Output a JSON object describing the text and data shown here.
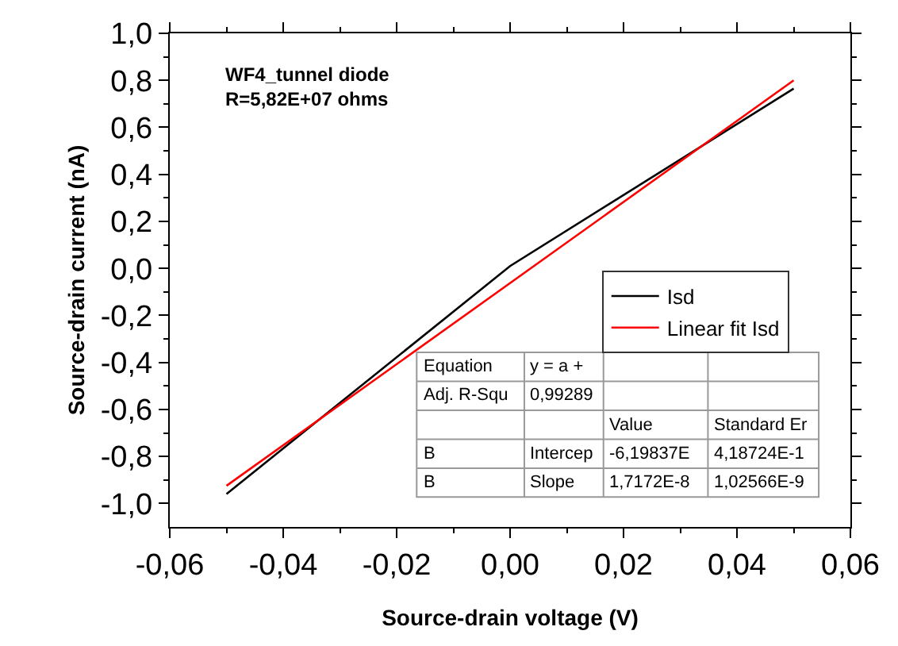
{
  "chart_data": {
    "type": "line",
    "xlabel": "Source-drain voltage (V)",
    "ylabel": "Source-drain current (nA)",
    "xlim": [
      -0.06,
      0.06
    ],
    "ylim": [
      -1.1,
      1.0
    ],
    "xticks": [
      {
        "value": -0.06,
        "label": "-0,06"
      },
      {
        "value": -0.04,
        "label": "-0,04"
      },
      {
        "value": -0.02,
        "label": "-0,02"
      },
      {
        "value": 0,
        "label": "0,00"
      },
      {
        "value": 0.02,
        "label": "0,02"
      },
      {
        "value": 0.04,
        "label": "0,04"
      },
      {
        "value": 0.06,
        "label": "0,06"
      }
    ],
    "yticks": [
      {
        "value": -1.0,
        "label": "-1,0"
      },
      {
        "value": -0.8,
        "label": "-0,8"
      },
      {
        "value": -0.6,
        "label": "-0,6"
      },
      {
        "value": -0.4,
        "label": "-0,4"
      },
      {
        "value": -0.2,
        "label": "-0,2"
      },
      {
        "value": 0,
        "label": "0,0"
      },
      {
        "value": 0.2,
        "label": "0,2"
      },
      {
        "value": 0.4,
        "label": "0,4"
      },
      {
        "value": 0.6,
        "label": "0,6"
      },
      {
        "value": 0.8,
        "label": "0,8"
      },
      {
        "value": 1.0,
        "label": "1,0"
      }
    ],
    "series": [
      {
        "name": "Isd",
        "color": "#000000",
        "x": [
          -0.05,
          0,
          0.05
        ],
        "values": [
          -0.96,
          0.01,
          0.765
        ]
      },
      {
        "name": "Linear fit Isd",
        "color": "#ff0000",
        "x": [
          -0.05,
          0.05
        ],
        "values": [
          -0.925,
          0.8
        ]
      }
    ],
    "legend": "right",
    "marker": "none",
    "line_style": "solid",
    "annotations": [
      "WF4_tunnel diode\nR=5,82E+07 ohms",
      "Equation",
      "y = a +",
      "Adj. R-Squ",
      "0,99289",
      "Value",
      "Standard Er",
      "B",
      "Intercep",
      "-6,19837E",
      "4,18724E-1",
      "B",
      "Slope",
      "1,7172E-8",
      "1,02566E-9"
    ]
  }
}
